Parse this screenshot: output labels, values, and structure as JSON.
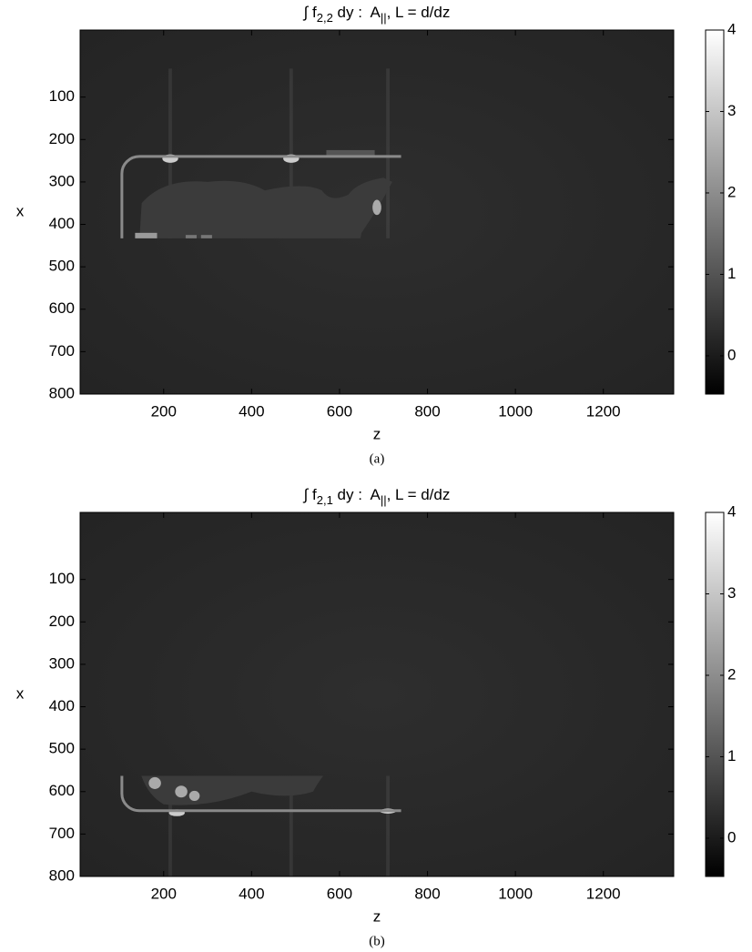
{
  "chart_data": [
    {
      "type": "image",
      "title": [
        "∫ f",
        "2,2",
        " dy :  A",
        "||",
        ", L = d/dz"
      ],
      "xlabel": "z",
      "ylabel": "x",
      "caption": "(a)",
      "xlim": [
        10,
        1360
      ],
      "ylim": [
        -58,
        800
      ],
      "xticks": [
        200,
        400,
        600,
        800,
        1000,
        1200
      ],
      "yticks": [
        100,
        200,
        300,
        400,
        500,
        600,
        700,
        800
      ],
      "colormap": "gray",
      "clim": [
        -0.47,
        4
      ],
      "cticks": [
        0,
        1,
        2,
        3,
        4
      ]
    },
    {
      "type": "image",
      "title": [
        "∫ f",
        "2,1",
        " dy :  A",
        "||",
        ", L = d/dz"
      ],
      "xlabel": "z",
      "ylabel": "x",
      "caption": "(b)",
      "xlim": [
        10,
        1360
      ],
      "ylim": [
        -58,
        800
      ],
      "xticks": [
        200,
        400,
        600,
        800,
        1000,
        1200
      ],
      "yticks": [
        100,
        200,
        300,
        400,
        500,
        600,
        700,
        800
      ],
      "colormap": "gray",
      "clim": [
        -0.47,
        4
      ],
      "cticks": [
        0,
        1,
        2,
        3,
        4
      ]
    }
  ]
}
